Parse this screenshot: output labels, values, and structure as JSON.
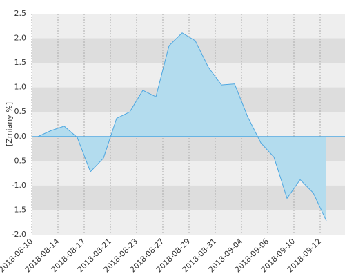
{
  "chart_data": {
    "type": "area",
    "y_label": "[Zmiany %]",
    "categories": [
      "2018-08-10",
      null,
      "2018-08-14",
      null,
      "2018-08-17",
      null,
      "2018-08-21",
      null,
      "2018-08-23",
      null,
      "2018-08-27",
      null,
      "2018-08-29",
      null,
      "2018-08-31",
      null,
      "2018-09-04",
      null,
      "2018-09-06",
      null,
      "2018-09-10",
      null,
      "2018-09-12"
    ],
    "values": [
      0.0,
      0.12,
      0.21,
      -0.02,
      -0.72,
      -0.44,
      0.37,
      0.5,
      0.94,
      0.81,
      1.85,
      2.11,
      1.95,
      1.41,
      1.05,
      1.07,
      0.4,
      -0.13,
      -0.42,
      -1.26,
      -0.88,
      -1.15,
      -1.72
    ],
    "color": "#4da6e0",
    "fill_color": "#b3dcee",
    "ylim": [
      -2,
      2.5
    ],
    "yticks": [
      {
        "value": 2.5,
        "label": "2.5"
      },
      {
        "value": 2,
        "label": "2.0"
      },
      {
        "value": 1.5,
        "label": "1.5"
      },
      {
        "value": 1,
        "label": "1.0"
      },
      {
        "value": 0.5,
        "label": "0.5"
      },
      {
        "value": 0,
        "label": "0.0"
      },
      {
        "value": -0.5,
        "label": "-0.5"
      },
      {
        "value": -1,
        "label": "-1.0"
      },
      {
        "value": -1.5,
        "label": "-1.5"
      },
      {
        "value": -2,
        "label": "-2.0"
      }
    ],
    "grid": true
  }
}
